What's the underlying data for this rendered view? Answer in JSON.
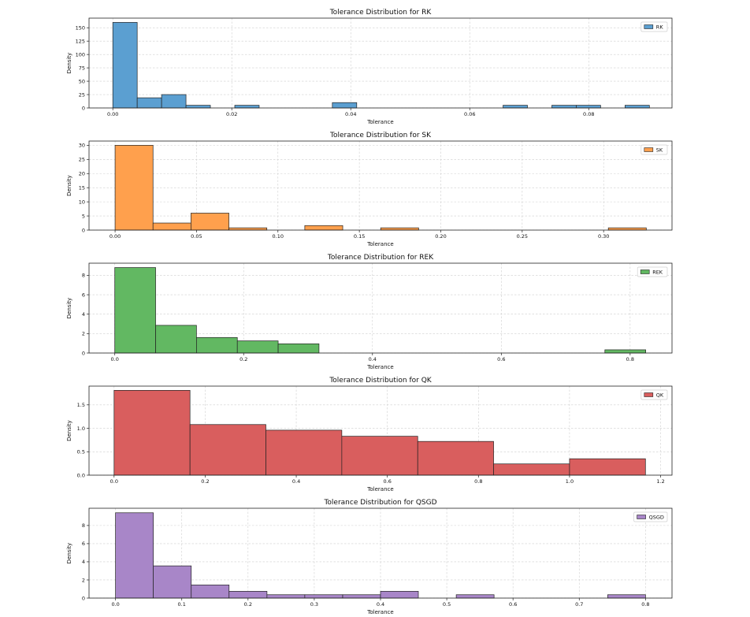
{
  "chart_data": [
    {
      "type": "bar",
      "title": "Tolerance Distribution for RK",
      "xlabel": "Tolerance",
      "ylabel": "Density",
      "xlim": [
        -0.004,
        0.094
      ],
      "ylim": [
        0,
        168
      ],
      "xticks": [
        0,
        0.02,
        0.04,
        0.06,
        0.08
      ],
      "xtick_labels": [
        "0.00",
        "0.02",
        "0.04",
        "0.06",
        "0.08"
      ],
      "yticks": [
        0,
        25,
        50,
        75,
        100,
        125,
        150
      ],
      "ytick_labels": [
        "0",
        "25",
        "50",
        "75",
        "100",
        "125",
        "150"
      ],
      "grid": true,
      "legend_position": "top-right",
      "color": "#5b9fd1",
      "series": [
        {
          "name": "RK",
          "bin_edges": [
            0.0,
            0.0041,
            0.0082,
            0.0123,
            0.0164,
            0.0205,
            0.0246,
            0.0287,
            0.0328,
            0.0369,
            0.041,
            0.0451,
            0.0492,
            0.0533,
            0.0574,
            0.0615,
            0.0656,
            0.0697,
            0.0738,
            0.0779,
            0.082,
            0.0861,
            0.0902
          ],
          "values": [
            160,
            19,
            25,
            5,
            0,
            5,
            0,
            0,
            0,
            10,
            0,
            0,
            0,
            0,
            0,
            0,
            5,
            0,
            5,
            5,
            0,
            5
          ]
        }
      ]
    },
    {
      "type": "bar",
      "title": "Tolerance Distribution for SK",
      "xlabel": "Tolerance",
      "ylabel": "Density",
      "xlim": [
        -0.016,
        0.342
      ],
      "ylim": [
        0,
        31.5
      ],
      "xticks": [
        0,
        0.05,
        0.1,
        0.15,
        0.2,
        0.25,
        0.3
      ],
      "xtick_labels": [
        "0.00",
        "0.05",
        "0.10",
        "0.15",
        "0.20",
        "0.25",
        "0.30"
      ],
      "yticks": [
        0,
        5,
        10,
        15,
        20,
        25,
        30
      ],
      "ytick_labels": [
        "0",
        "5",
        "10",
        "15",
        "20",
        "25",
        "30"
      ],
      "grid": true,
      "legend_position": "top-right",
      "color": "#ffa04d",
      "series": [
        {
          "name": "SK",
          "bin_edges": [
            0.0,
            0.0233,
            0.0466,
            0.0699,
            0.0932,
            0.1165,
            0.1398,
            0.1631,
            0.1864,
            0.2097,
            0.233,
            0.2563,
            0.2796,
            0.3029,
            0.3262
          ],
          "values": [
            30,
            2.5,
            6,
            0.8,
            0,
            1.6,
            0,
            0.8,
            0,
            0,
            0,
            0,
            0,
            0.8
          ]
        }
      ]
    },
    {
      "type": "bar",
      "title": "Tolerance Distribution for REK",
      "xlabel": "Tolerance",
      "ylabel": "Density",
      "xlim": [
        -0.04,
        0.865
      ],
      "ylim": [
        0,
        9.25
      ],
      "xticks": [
        0,
        0.2,
        0.4,
        0.6,
        0.8
      ],
      "xtick_labels": [
        "0.0",
        "0.2",
        "0.4",
        "0.6",
        "0.8"
      ],
      "yticks": [
        0,
        2,
        4,
        6,
        8
      ],
      "ytick_labels": [
        "0",
        "2",
        "4",
        "6",
        "8"
      ],
      "grid": true,
      "legend_position": "top-right",
      "color": "#62b862",
      "series": [
        {
          "name": "REK",
          "bin_edges": [
            0.0,
            0.0634,
            0.1268,
            0.1902,
            0.2536,
            0.317,
            0.3804,
            0.4438,
            0.5072,
            0.5706,
            0.634,
            0.6974,
            0.7608,
            0.8242
          ],
          "values": [
            8.8,
            2.85,
            1.6,
            1.25,
            0.95,
            0,
            0,
            0,
            0,
            0,
            0,
            0,
            0.33
          ]
        }
      ]
    },
    {
      "type": "bar",
      "title": "Tolerance Distribution for QK",
      "xlabel": "Tolerance",
      "ylabel": "Density",
      "xlim": [
        -0.055,
        1.225
      ],
      "ylim": [
        0,
        1.9
      ],
      "xticks": [
        0,
        0.2,
        0.4,
        0.6,
        0.8,
        1.0,
        1.2
      ],
      "xtick_labels": [
        "0.0",
        "0.2",
        "0.4",
        "0.6",
        "0.8",
        "1.0",
        "1.2"
      ],
      "yticks": [
        0,
        0.5,
        1.0,
        1.5
      ],
      "ytick_labels": [
        "0.0",
        "0.5",
        "1.0",
        "1.5"
      ],
      "grid": true,
      "legend_position": "top-right",
      "color": "#d95e5e",
      "series": [
        {
          "name": "QK",
          "bin_edges": [
            0.0,
            0.1667,
            0.3333,
            0.5,
            0.6667,
            0.8333,
            1.0,
            1.1667
          ],
          "values": [
            1.81,
            1.08,
            0.96,
            0.83,
            0.72,
            0.24,
            0.35
          ]
        }
      ]
    },
    {
      "type": "bar",
      "title": "Tolerance Distribution for QSGD",
      "xlabel": "Tolerance",
      "ylabel": "Density",
      "xlim": [
        -0.04,
        0.84
      ],
      "ylim": [
        0,
        9.9
      ],
      "xticks": [
        0,
        0.1,
        0.2,
        0.3,
        0.4,
        0.5,
        0.6,
        0.7,
        0.8
      ],
      "xtick_labels": [
        "0.0",
        "0.1",
        "0.2",
        "0.3",
        "0.4",
        "0.5",
        "0.6",
        "0.7",
        "0.8"
      ],
      "yticks": [
        0,
        2,
        4,
        6,
        8
      ],
      "ytick_labels": [
        "0",
        "2",
        "4",
        "6",
        "8"
      ],
      "grid": true,
      "legend_position": "top-right",
      "color": "#a886c8",
      "series": [
        {
          "name": "QSGD",
          "bin_edges": [
            0.0,
            0.0571,
            0.1143,
            0.1714,
            0.2286,
            0.2857,
            0.3429,
            0.4,
            0.4571,
            0.5143,
            0.5714,
            0.6286,
            0.6857,
            0.7429,
            0.8
          ],
          "values": [
            9.4,
            3.55,
            1.45,
            0.75,
            0.37,
            0.37,
            0.37,
            0.75,
            0,
            0.37,
            0,
            0,
            0,
            0.37
          ]
        }
      ]
    }
  ]
}
